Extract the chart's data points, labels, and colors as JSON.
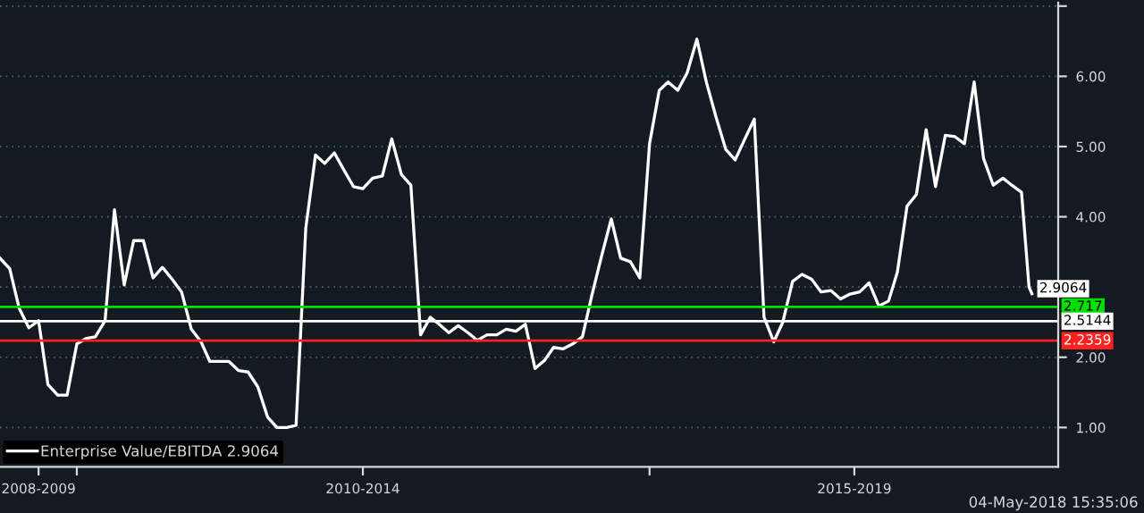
{
  "chart_data": {
    "type": "line",
    "x": [
      "2009-05",
      "2009-06",
      "2009-07",
      "2009-08",
      "2009-09",
      "2009-10",
      "2009-11",
      "2009-12",
      "2010-01",
      "2010-02",
      "2010-03",
      "2010-04",
      "2010-05",
      "2010-06",
      "2010-07",
      "2010-08",
      "2010-09",
      "2010-10",
      "2010-11",
      "2010-12",
      "2011-01",
      "2011-02",
      "2011-03",
      "2011-04",
      "2011-05",
      "2011-06",
      "2011-07",
      "2011-08",
      "2011-09",
      "2011-10",
      "2011-11",
      "2011-12",
      "2012-01",
      "2012-02",
      "2012-03",
      "2012-04",
      "2012-05",
      "2012-06",
      "2012-07",
      "2012-08",
      "2012-09",
      "2012-10",
      "2012-11",
      "2012-12",
      "2013-01",
      "2013-02",
      "2013-03",
      "2013-04",
      "2013-05",
      "2013-06",
      "2013-07",
      "2013-08",
      "2013-09",
      "2013-10",
      "2013-11",
      "2013-12",
      "2014-01",
      "2014-02",
      "2014-03",
      "2014-04",
      "2014-05",
      "2014-06",
      "2014-07",
      "2014-08",
      "2014-09",
      "2014-10",
      "2014-11",
      "2014-12",
      "2015-01",
      "2015-02",
      "2015-03",
      "2015-04",
      "2015-05",
      "2015-06",
      "2015-07",
      "2015-08",
      "2015-09",
      "2015-10",
      "2015-11",
      "2015-12",
      "2016-01",
      "2016-02",
      "2016-03",
      "2016-04",
      "2016-05",
      "2016-06",
      "2016-07",
      "2016-08",
      "2016-09",
      "2016-10",
      "2016-11",
      "2016-12",
      "2017-01",
      "2017-02",
      "2017-03",
      "2017-04",
      "2017-05",
      "2017-06",
      "2017-07",
      "2017-08",
      "2017-09",
      "2017-10",
      "2017-11",
      "2017-12",
      "2018-01",
      "2018-02",
      "2018-03",
      "2018-04",
      "2018-04-25",
      "2018-05-04"
    ],
    "series": [
      {
        "name": "Enterprise Value/EBITDA 2.9064",
        "color": "#ffffff",
        "values": [
          3.41,
          3.26,
          2.7,
          2.42,
          2.52,
          1.61,
          1.46,
          1.46,
          2.19,
          2.27,
          2.29,
          2.52,
          4.1,
          3.03,
          3.66,
          3.66,
          3.13,
          3.28,
          3.11,
          2.93,
          2.4,
          2.22,
          1.94,
          1.94,
          1.94,
          1.81,
          1.79,
          1.58,
          1.15,
          1.0,
          1.0,
          1.03,
          3.84,
          4.88,
          4.76,
          4.91,
          4.67,
          4.43,
          4.4,
          4.55,
          4.58,
          5.11,
          4.6,
          4.45,
          2.32,
          2.57,
          2.47,
          2.35,
          2.45,
          2.35,
          2.24,
          2.32,
          2.32,
          2.4,
          2.37,
          2.47,
          1.84,
          1.96,
          2.14,
          2.12,
          2.19,
          2.29,
          2.88,
          3.44,
          3.97,
          3.41,
          3.36,
          3.13,
          5.04,
          5.8,
          5.92,
          5.8,
          6.05,
          6.53,
          5.92,
          5.42,
          4.96,
          4.81,
          5.11,
          5.39,
          2.57,
          2.22,
          2.5,
          3.08,
          3.18,
          3.11,
          2.93,
          2.95,
          2.83,
          2.9,
          2.93,
          3.06,
          2.73,
          2.8,
          3.21,
          4.15,
          4.32,
          5.24,
          4.43,
          5.16,
          5.14,
          5.04,
          5.92,
          4.83,
          4.45,
          4.55,
          4.45,
          4.35,
          3.0,
          2.9064
        ],
        "value_labels": [
          null,
          null,
          null,
          null,
          null,
          null,
          null,
          null,
          null,
          null,
          null,
          null,
          null,
          null,
          null,
          null,
          null,
          null,
          null,
          null,
          null,
          null,
          null,
          null,
          null,
          null,
          null,
          null,
          null,
          null,
          null,
          null,
          null,
          null,
          null,
          null,
          null,
          null,
          null,
          null,
          null,
          null,
          null,
          null,
          null,
          null,
          null,
          null,
          null,
          null,
          null,
          null,
          null,
          null,
          null,
          null,
          null,
          null,
          null,
          null,
          null,
          null,
          null,
          null,
          null,
          null,
          null,
          null,
          null,
          null,
          null,
          null,
          null,
          null,
          null,
          null,
          null,
          null,
          null,
          null,
          null,
          null,
          null,
          null,
          null,
          null,
          null,
          null,
          null,
          null,
          null,
          null,
          null,
          null,
          null,
          null,
          null,
          null,
          null,
          null,
          null,
          null,
          null,
          null,
          null,
          null,
          null,
          null,
          null,
          "2.9064"
        ]
      }
    ],
    "ref_lines": [
      {
        "axis": "y",
        "value": 2.717,
        "label": "2.717",
        "color": "#00e000"
      },
      {
        "axis": "y",
        "value": 2.5144,
        "label": "2.5144",
        "color": "#ffffff"
      },
      {
        "axis": "y",
        "value": 2.2359,
        "label": "2.2359",
        "color": "#ff2020"
      }
    ],
    "xlim": [
      "2009-05-01",
      "2018-07-27"
    ],
    "xticks": [
      {
        "value": "2009-09-01",
        "label": "2008-2009"
      },
      {
        "value": "2010-01-01",
        "label": null
      },
      {
        "value": "2012-07-01",
        "label": "2010-2014"
      },
      {
        "value": "2015-01-01",
        "label": null
      },
      {
        "value": "2016-10-15",
        "label": "2015-2019"
      }
    ],
    "ylim": [
      0.44,
      7.05
    ],
    "yticks": [
      {
        "value": 1,
        "label": "1.00"
      },
      {
        "value": 2,
        "label": "2.00"
      },
      {
        "value": 3,
        "label": null
      },
      {
        "value": 4,
        "label": "4.00"
      },
      {
        "value": 5,
        "label": "5.00"
      },
      {
        "value": 6,
        "label": "6.00"
      },
      {
        "value": 7,
        "label": null
      }
    ],
    "grid": "y",
    "legend": "bottom left",
    "line_style": "solid",
    "marker": "none",
    "annotations": [
      "04-May-2018 15:35:06"
    ]
  }
}
